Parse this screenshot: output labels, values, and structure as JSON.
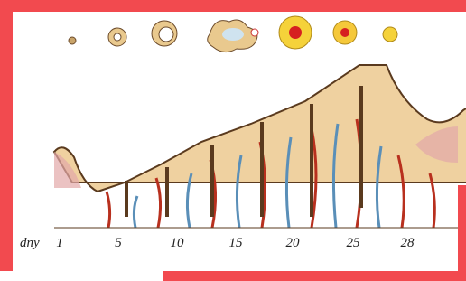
{
  "axis_label": "dny",
  "day_labels": [
    "1",
    "5",
    "10",
    "15",
    "20",
    "25",
    "28"
  ]
}
